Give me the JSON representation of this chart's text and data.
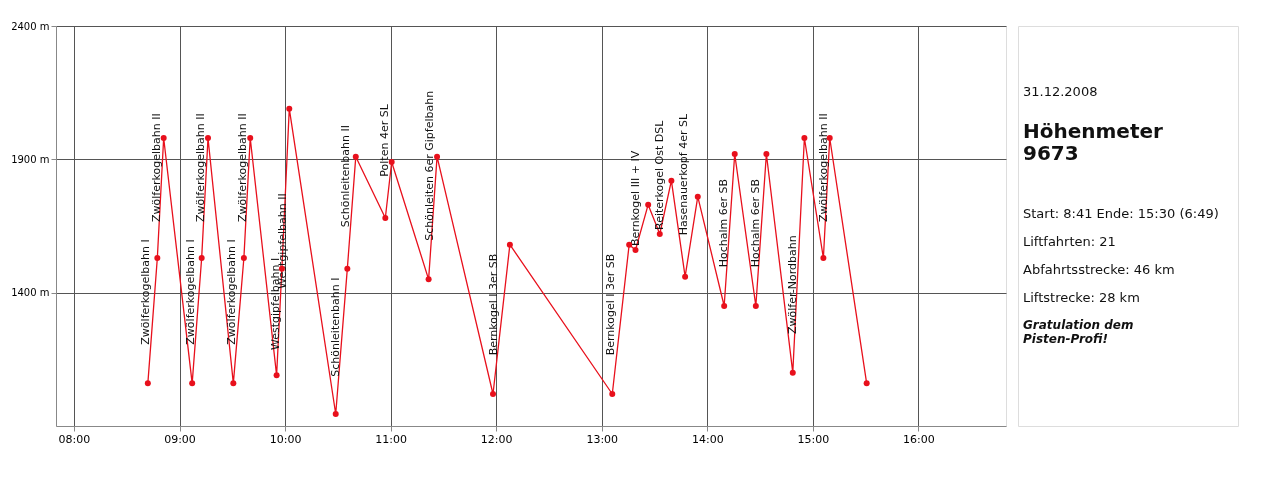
{
  "chart_data": {
    "type": "line",
    "title": "Höhenmeter\n9673",
    "x": [
      8.7,
      8.79,
      8.85,
      9.12,
      9.21,
      9.27,
      9.51,
      9.61,
      9.67,
      9.92,
      9.97,
      10.04,
      10.48,
      10.59,
      10.67,
      10.95,
      11.01,
      11.36,
      11.44,
      11.97,
      12.13,
      13.1,
      13.26,
      13.32,
      13.44,
      13.55,
      13.66,
      13.79,
      13.91,
      14.16,
      14.26,
      14.46,
      14.56,
      14.81,
      14.92,
      15.1,
      15.16,
      15.51
    ],
    "series": [
      {
        "color": "#e8101c",
        "values": [
          1060,
          1530,
          1980,
          1060,
          1530,
          1980,
          1060,
          1530,
          1980,
          1090,
          1490,
          2090,
          945,
          1490,
          1910,
          1680,
          1890,
          1450,
          1910,
          1020,
          1580,
          1020,
          1580,
          1560,
          1730,
          1620,
          1820,
          1460,
          1760,
          1350,
          1920,
          1350,
          1920,
          1100,
          1980,
          1530,
          1980,
          1060
        ]
      }
    ],
    "xlim": [
      7.83,
      16.83
    ],
    "ylim": [
      900,
      2400
    ],
    "xticks": [
      {
        "value": 8,
        "label": "08:00"
      },
      {
        "value": 9,
        "label": "09:00"
      },
      {
        "value": 10,
        "label": "10:00"
      },
      {
        "value": 11,
        "label": "11:00"
      },
      {
        "value": 12,
        "label": "12:00"
      },
      {
        "value": 13,
        "label": "13:00"
      },
      {
        "value": 14,
        "label": "14:00"
      },
      {
        "value": 15,
        "label": "15:00"
      },
      {
        "value": 16,
        "label": "16:00"
      }
    ],
    "yticks": [
      {
        "value": 1400,
        "label": "1400 m"
      },
      {
        "value": 1900,
        "label": "1900 m"
      },
      {
        "value": 2400,
        "label": "2400 m"
      }
    ],
    "grid": true,
    "marker": "circle",
    "line_style": "solid",
    "annotations": [
      {
        "text": "Zwölferkogelbahn I",
        "x": 8.68,
        "y": 1190
      },
      {
        "text": "Zwölferkogelbahn II",
        "x": 8.79,
        "y": 1650
      },
      {
        "text": "Zwölferkogelbahn I",
        "x": 9.11,
        "y": 1190
      },
      {
        "text": "Zwölferkogelbahn II",
        "x": 9.2,
        "y": 1650
      },
      {
        "text": "Zwölferkogelbahn I",
        "x": 9.5,
        "y": 1190
      },
      {
        "text": "Zwölferkogelbahn II",
        "x": 9.6,
        "y": 1650
      },
      {
        "text": "Westgipfelbahn I",
        "x": 9.91,
        "y": 1170
      },
      {
        "text": "Westgipfelbahn II",
        "x": 9.98,
        "y": 1400
      },
      {
        "text": "Schönleitenbahn I",
        "x": 10.48,
        "y": 1070
      },
      {
        "text": "Schönleitenbahn II",
        "x": 10.58,
        "y": 1630
      },
      {
        "text": "Polten 4er SL",
        "x": 10.95,
        "y": 1820
      },
      {
        "text": "Schönleiten 6er Gipfelbahn",
        "x": 11.37,
        "y": 1580
      },
      {
        "text": "Bernkogel I 3er SB",
        "x": 11.98,
        "y": 1150
      },
      {
        "text": "Bernkogel I 3er SB",
        "x": 13.09,
        "y": 1150
      },
      {
        "text": "Bernkogel III + IV",
        "x": 13.32,
        "y": 1560
      },
      {
        "text": "Reiterkogel Ost DSL",
        "x": 13.55,
        "y": 1620
      },
      {
        "text": "Hasenauerkopf 4er SL",
        "x": 13.78,
        "y": 1600
      },
      {
        "text": "Hochalm 6er SB",
        "x": 14.16,
        "y": 1480
      },
      {
        "text": "Hochalm 6er SB",
        "x": 14.46,
        "y": 1480
      },
      {
        "text": "Zwölfer-Nordbahn",
        "x": 14.81,
        "y": 1230
      },
      {
        "text": "Zwölferkogelbahn II",
        "x": 15.11,
        "y": 1650
      },
      "31.12.2008",
      "Start: 8:41  Ende: 15:30 (6:49)",
      "Liftfahrten: 21",
      "Abfahrtsstrecke: 46 km",
      "Liftstrecke: 28 km",
      "Gratulation dem\nPisten-Profi!"
    ]
  }
}
